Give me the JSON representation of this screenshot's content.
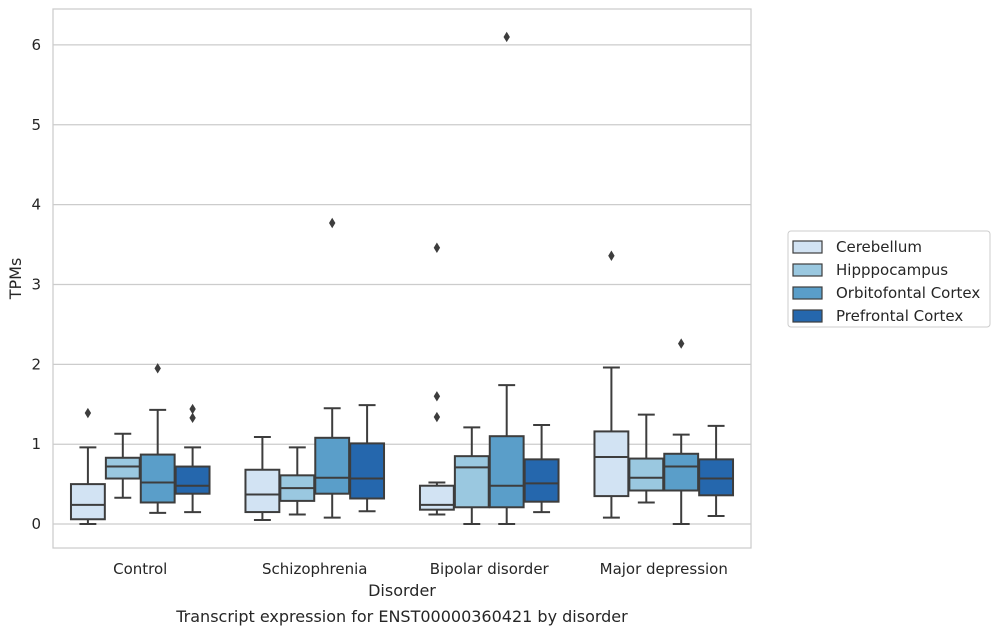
{
  "chart_data": {
    "type": "box",
    "title": "Transcript expression for ENST00000360421 by disorder",
    "xlabel": "Disorder",
    "ylabel": "TPMs",
    "ylim": [
      -0.3,
      6.45
    ],
    "yticks": [
      0,
      1,
      2,
      3,
      4,
      5,
      6
    ],
    "grid": "horizontal",
    "legend_position": "right",
    "categories": [
      "Control",
      "Schizophrenia",
      "Bipolar disorder",
      "Major depression"
    ],
    "series": [
      {
        "name": "Cerebellum",
        "color": "#d2e3f3",
        "boxes": [
          {
            "whislo": 0.0,
            "q1": 0.06,
            "med": 0.24,
            "q3": 0.5,
            "whishi": 0.96,
            "fliers": [
              1.39
            ]
          },
          {
            "whislo": 0.05,
            "q1": 0.15,
            "med": 0.37,
            "q3": 0.68,
            "whishi": 1.09,
            "fliers": []
          },
          {
            "whislo": 0.12,
            "q1": 0.18,
            "med": 0.24,
            "q3": 0.48,
            "whishi": 0.52,
            "fliers": [
              1.34,
              1.6,
              3.46
            ]
          },
          {
            "whislo": 0.08,
            "q1": 0.35,
            "med": 0.84,
            "q3": 1.16,
            "whishi": 1.96,
            "fliers": [
              3.36
            ]
          }
        ]
      },
      {
        "name": "Hipppocampus",
        "color": "#9ac8e0",
        "boxes": [
          {
            "whislo": 0.33,
            "q1": 0.57,
            "med": 0.72,
            "q3": 0.83,
            "whishi": 1.13,
            "fliers": []
          },
          {
            "whislo": 0.12,
            "q1": 0.29,
            "med": 0.45,
            "q3": 0.61,
            "whishi": 0.96,
            "fliers": []
          },
          {
            "whislo": 0.0,
            "q1": 0.21,
            "med": 0.71,
            "q3": 0.85,
            "whishi": 1.21,
            "fliers": []
          },
          {
            "whislo": 0.27,
            "q1": 0.42,
            "med": 0.58,
            "q3": 0.82,
            "whishi": 1.37,
            "fliers": []
          }
        ]
      },
      {
        "name": "Orbitofontal Cortex",
        "color": "#5a9ec9",
        "boxes": [
          {
            "whislo": 0.14,
            "q1": 0.27,
            "med": 0.52,
            "q3": 0.87,
            "whishi": 1.43,
            "fliers": [
              1.95
            ]
          },
          {
            "whislo": 0.08,
            "q1": 0.38,
            "med": 0.58,
            "q3": 1.08,
            "whishi": 1.45,
            "fliers": [
              3.77
            ]
          },
          {
            "whislo": 0.0,
            "q1": 0.21,
            "med": 0.48,
            "q3": 1.1,
            "whishi": 1.74,
            "fliers": [
              6.1
            ]
          },
          {
            "whislo": 0.0,
            "q1": 0.42,
            "med": 0.72,
            "q3": 0.88,
            "whishi": 1.12,
            "fliers": [
              2.26
            ]
          }
        ]
      },
      {
        "name": "Prefrontal Cortex",
        "color": "#2567ad",
        "boxes": [
          {
            "whislo": 0.15,
            "q1": 0.38,
            "med": 0.48,
            "q3": 0.72,
            "whishi": 0.96,
            "fliers": [
              1.33,
              1.44
            ]
          },
          {
            "whislo": 0.16,
            "q1": 0.32,
            "med": 0.57,
            "q3": 1.01,
            "whishi": 1.49,
            "fliers": []
          },
          {
            "whislo": 0.15,
            "q1": 0.28,
            "med": 0.51,
            "q3": 0.81,
            "whishi": 1.24,
            "fliers": []
          },
          {
            "whislo": 0.1,
            "q1": 0.36,
            "med": 0.57,
            "q3": 0.81,
            "whishi": 1.23,
            "fliers": []
          }
        ]
      }
    ]
  }
}
